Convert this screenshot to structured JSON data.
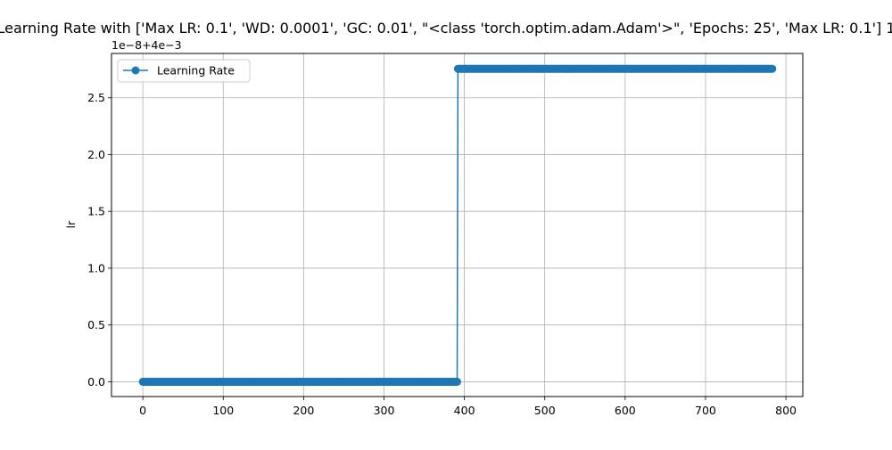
{
  "chart_data": {
    "type": "line",
    "title": "Learning Rate with ['Max LR: 0.1', 'WD: 0.0001', 'GC: 0.01', \"<class 'torch.optim.adam.Adam'>\", 'Epochs: 25', 'Max LR: 0.1'] 1",
    "xlabel": "",
    "ylabel": "lr",
    "y_offset_label": "1e−8+4e−3",
    "xlim": [
      -39,
      821
    ],
    "ylim": [
      -0.13,
      2.89
    ],
    "x_ticks": [
      0,
      100,
      200,
      300,
      400,
      500,
      600,
      700,
      800
    ],
    "x_tick_labels": [
      "0",
      "100",
      "200",
      "300",
      "400",
      "500",
      "600",
      "700",
      "800"
    ],
    "y_ticks": [
      0.0,
      0.5,
      1.0,
      1.5,
      2.0,
      2.5
    ],
    "y_tick_labels": [
      "0.0",
      "0.5",
      "1.0",
      "1.5",
      "2.0",
      "2.5"
    ],
    "grid": true,
    "legend_position": "top-left",
    "series": [
      {
        "name": "Learning Rate",
        "color": "#1f77b4",
        "marker": "circle",
        "segments": [
          {
            "x_start": 0,
            "x_end": 391,
            "y": 0.0
          },
          {
            "x_start": 392,
            "x_end": 783,
            "y": 2.755
          }
        ]
      }
    ]
  }
}
